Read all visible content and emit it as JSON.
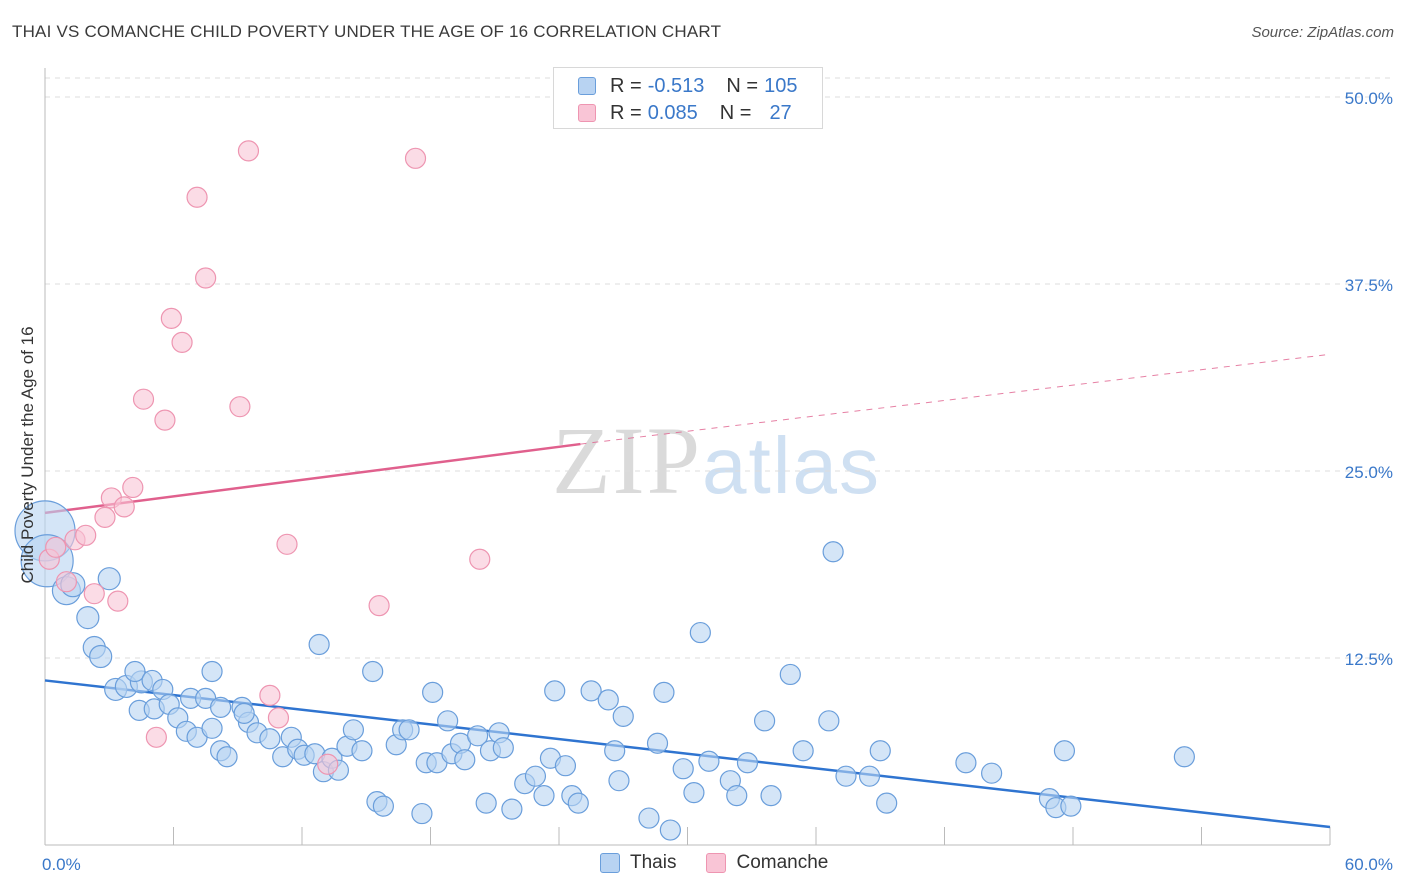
{
  "title": "THAI VS COMANCHE CHILD POVERTY UNDER THE AGE OF 16 CORRELATION CHART",
  "source": "Source: ZipAtlas.com",
  "watermark": {
    "zip": "ZIP",
    "atlas": "atlas"
  },
  "legend_top": [
    {
      "r_label": "R =",
      "r_value": "-0.513",
      "n_label": "N =",
      "n_value": "105"
    },
    {
      "r_label": "R =",
      "r_value": "0.085",
      "n_label": "N =",
      "n_value": "27"
    }
  ],
  "colors": {
    "thais_fill": "#b8d3f2",
    "thais_stroke": "#6a9edb",
    "thais_line": "#2f74d0",
    "comanche_fill": "#f9c5d6",
    "comanche_stroke": "#ee95b1",
    "comanche_line": "#e0608d",
    "axis_label": "#3a78c9",
    "grid": "#dcdcdc"
  },
  "chart_data": {
    "type": "scatter",
    "xlabel": "",
    "ylabel": "Child Poverty Under the Age of 16",
    "xlim": [
      0,
      60
    ],
    "ylim": [
      0,
      52
    ],
    "x_tick_labels": [
      {
        "value": 0,
        "label": "0.0%"
      },
      {
        "value": 60,
        "label": "60.0%"
      }
    ],
    "y_tick_labels": [
      {
        "value": 12.5,
        "label": "12.5%"
      },
      {
        "value": 25,
        "label": "25.0%"
      },
      {
        "value": 37.5,
        "label": "37.5%"
      },
      {
        "value": 50,
        "label": "50.0%"
      }
    ],
    "grid": "horizontal-dashed",
    "legend_position": "bottom-center",
    "series": [
      {
        "name": "Thais",
        "trend": {
          "x": [
            0,
            60
          ],
          "y": [
            11.0,
            1.2
          ],
          "style": "solid"
        },
        "points": [
          [
            0.0,
            21.0,
            30
          ],
          [
            0.1,
            19.0,
            26
          ],
          [
            1.0,
            17.0,
            14
          ],
          [
            1.3,
            17.4,
            12
          ],
          [
            3.0,
            17.8,
            11
          ],
          [
            2.0,
            15.2,
            11
          ],
          [
            2.3,
            13.2,
            11
          ],
          [
            2.6,
            12.6,
            11
          ],
          [
            3.3,
            10.4,
            11
          ],
          [
            3.8,
            10.6,
            11
          ],
          [
            4.5,
            10.9,
            11
          ],
          [
            4.2,
            11.6,
            10
          ],
          [
            5.0,
            11.0,
            10
          ],
          [
            5.5,
            10.4,
            10
          ],
          [
            7.8,
            11.6,
            10
          ],
          [
            6.8,
            9.8,
            10
          ],
          [
            7.5,
            9.8,
            10
          ],
          [
            4.4,
            9.0,
            10
          ],
          [
            5.1,
            9.1,
            10
          ],
          [
            5.8,
            9.4,
            10
          ],
          [
            6.2,
            8.5,
            10
          ],
          [
            6.6,
            7.6,
            10
          ],
          [
            7.1,
            7.2,
            10
          ],
          [
            7.8,
            7.8,
            10
          ],
          [
            8.2,
            6.3,
            10
          ],
          [
            8.5,
            5.9,
            10
          ],
          [
            9.2,
            9.2,
            10
          ],
          [
            9.5,
            8.2,
            10
          ],
          [
            9.9,
            7.5,
            10
          ],
          [
            10.5,
            7.1,
            10
          ],
          [
            11.1,
            5.9,
            10
          ],
          [
            11.5,
            7.2,
            10
          ],
          [
            11.8,
            6.4,
            10
          ],
          [
            12.1,
            6.0,
            10
          ],
          [
            12.6,
            6.1,
            10
          ],
          [
            12.8,
            13.4,
            10
          ],
          [
            13.0,
            4.9,
            10
          ],
          [
            13.4,
            5.8,
            10
          ],
          [
            13.7,
            5.0,
            10
          ],
          [
            14.1,
            6.6,
            10
          ],
          [
            14.4,
            7.7,
            10
          ],
          [
            14.8,
            6.3,
            10
          ],
          [
            15.3,
            11.6,
            10
          ],
          [
            15.5,
            2.9,
            10
          ],
          [
            15.8,
            2.6,
            10
          ],
          [
            16.4,
            6.7,
            10
          ],
          [
            16.7,
            7.7,
            10
          ],
          [
            17.0,
            7.7,
            10
          ],
          [
            17.6,
            2.1,
            10
          ],
          [
            17.8,
            5.5,
            10
          ],
          [
            18.1,
            10.2,
            10
          ],
          [
            18.3,
            5.5,
            10
          ],
          [
            18.8,
            8.3,
            10
          ],
          [
            19.0,
            6.1,
            10
          ],
          [
            19.4,
            6.8,
            10
          ],
          [
            19.6,
            5.7,
            10
          ],
          [
            20.2,
            7.3,
            10
          ],
          [
            20.6,
            2.8,
            10
          ],
          [
            20.8,
            6.3,
            10
          ],
          [
            21.2,
            7.5,
            10
          ],
          [
            21.4,
            6.5,
            10
          ],
          [
            21.8,
            2.4,
            10
          ],
          [
            22.4,
            4.1,
            10
          ],
          [
            22.9,
            4.6,
            10
          ],
          [
            23.3,
            3.3,
            10
          ],
          [
            23.6,
            5.8,
            10
          ],
          [
            23.8,
            10.3,
            10
          ],
          [
            24.3,
            5.3,
            10
          ],
          [
            24.6,
            3.3,
            10
          ],
          [
            24.9,
            2.8,
            10
          ],
          [
            25.5,
            10.3,
            10
          ],
          [
            26.3,
            9.7,
            10
          ],
          [
            26.6,
            6.3,
            10
          ],
          [
            26.8,
            4.3,
            10
          ],
          [
            27.0,
            8.6,
            10
          ],
          [
            28.2,
            1.8,
            10
          ],
          [
            28.6,
            6.8,
            10
          ],
          [
            28.9,
            10.2,
            10
          ],
          [
            29.2,
            1.0,
            10
          ],
          [
            29.8,
            5.1,
            10
          ],
          [
            30.3,
            3.5,
            10
          ],
          [
            30.6,
            14.2,
            10
          ],
          [
            31.0,
            5.6,
            10
          ],
          [
            32.0,
            4.3,
            10
          ],
          [
            32.3,
            3.3,
            10
          ],
          [
            32.8,
            5.5,
            10
          ],
          [
            33.6,
            8.3,
            10
          ],
          [
            33.9,
            3.3,
            10
          ],
          [
            34.8,
            11.4,
            10
          ],
          [
            35.4,
            6.3,
            10
          ],
          [
            36.6,
            8.3,
            10
          ],
          [
            36.8,
            19.6,
            10
          ],
          [
            37.4,
            4.6,
            10
          ],
          [
            38.5,
            4.6,
            10
          ],
          [
            39.0,
            6.3,
            10
          ],
          [
            39.3,
            2.8,
            10
          ],
          [
            43.0,
            5.5,
            10
          ],
          [
            44.2,
            4.8,
            10
          ],
          [
            46.9,
            3.1,
            10
          ],
          [
            47.2,
            2.5,
            10
          ],
          [
            47.6,
            6.3,
            10
          ],
          [
            47.9,
            2.6,
            10
          ],
          [
            53.2,
            5.9,
            10
          ],
          [
            8.2,
            9.2,
            10
          ],
          [
            9.3,
            8.8,
            10
          ]
        ]
      },
      {
        "name": "Comanche",
        "trend": {
          "x": [
            0,
            25
          ],
          "y": [
            22.2,
            26.8
          ],
          "style": "solid",
          "extended_to": [
            60,
            32.8
          ],
          "extended_style": "dashed"
        },
        "points": [
          [
            0.2,
            19.1,
            10
          ],
          [
            0.5,
            19.9,
            10
          ],
          [
            1.0,
            17.6,
            10
          ],
          [
            1.4,
            20.4,
            10
          ],
          [
            1.9,
            20.7,
            10
          ],
          [
            2.3,
            16.8,
            10
          ],
          [
            2.8,
            21.9,
            10
          ],
          [
            3.1,
            23.2,
            10
          ],
          [
            3.4,
            16.3,
            10
          ],
          [
            3.7,
            22.6,
            10
          ],
          [
            4.1,
            23.9,
            10
          ],
          [
            4.6,
            29.8,
            10
          ],
          [
            5.2,
            7.2,
            10
          ],
          [
            5.6,
            28.4,
            10
          ],
          [
            5.9,
            35.2,
            10
          ],
          [
            6.4,
            33.6,
            10
          ],
          [
            7.1,
            43.3,
            10
          ],
          [
            7.5,
            37.9,
            10
          ],
          [
            9.1,
            29.3,
            10
          ],
          [
            9.5,
            46.4,
            10
          ],
          [
            10.5,
            10.0,
            10
          ],
          [
            10.9,
            8.5,
            10
          ],
          [
            11.3,
            20.1,
            10
          ],
          [
            13.2,
            5.4,
            10
          ],
          [
            15.6,
            16.0,
            10
          ],
          [
            17.3,
            45.9,
            10
          ],
          [
            20.3,
            19.1,
            10
          ]
        ]
      }
    ]
  },
  "bottom_legend": [
    "Thais",
    "Comanche"
  ]
}
